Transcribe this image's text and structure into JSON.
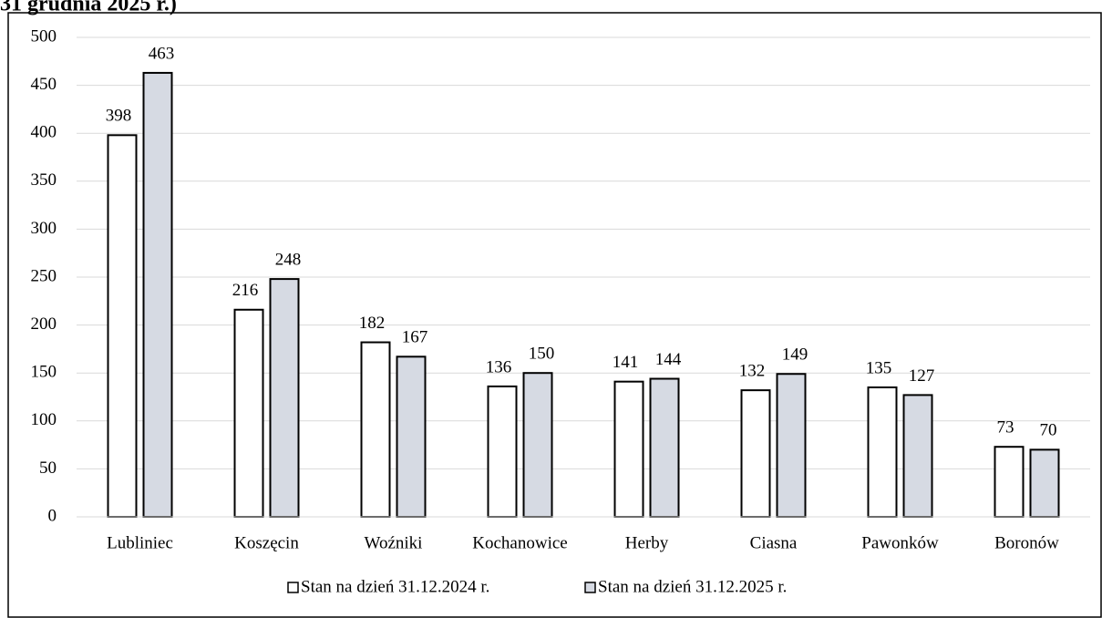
{
  "chart_data": {
    "type": "bar",
    "title": "31 grudnia 2025 r.)",
    "categories": [
      "Lubliniec",
      "Koszęcin",
      "Woźniki",
      "Kochanowice",
      "Herby",
      "Ciasna",
      "Pawonków",
      "Boronów"
    ],
    "series": [
      {
        "name": "Stan na dzień 31.12.2024 r.",
        "color": "#ffffff",
        "values": [
          398,
          216,
          182,
          136,
          141,
          132,
          135,
          73
        ]
      },
      {
        "name": "Stan na dzień 31.12.2025 r.",
        "color": "#d6dae3",
        "values": [
          463,
          248,
          167,
          150,
          144,
          149,
          127,
          70
        ]
      }
    ],
    "ylim": [
      0,
      500
    ],
    "yticks": [
      0,
      50,
      100,
      150,
      200,
      250,
      300,
      350,
      400,
      450,
      500
    ],
    "grid": true,
    "legend": "bottom"
  }
}
